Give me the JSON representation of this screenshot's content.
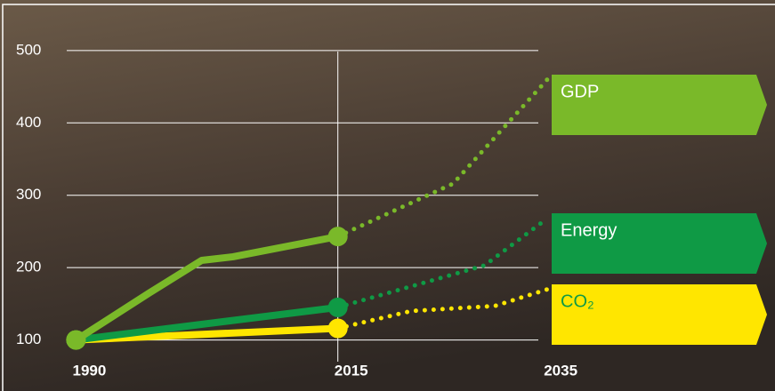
{
  "chart_data": {
    "type": "line",
    "xlim": [
      1983,
      2040
    ],
    "ylim": [
      70,
      560
    ],
    "xticks": [
      1990,
      2015,
      2035
    ],
    "yticks": [
      100,
      200,
      300,
      400,
      500
    ],
    "grid": true,
    "series": [
      {
        "name": "GDP",
        "color": "#7ab929",
        "x": [
          1990,
          1997,
          2002,
          2005,
          2015
        ],
        "values": [
          100,
          165,
          210,
          215,
          243
        ],
        "projection_x": [
          2015,
          2026,
          2035
        ],
        "projection_values": [
          243,
          316,
          460
        ]
      },
      {
        "name": "Energy",
        "color": "#0f9a45",
        "x": [
          1990,
          2015
        ],
        "values": [
          100,
          145
        ],
        "projection_x": [
          2015,
          2029,
          2035
        ],
        "projection_values": [
          145,
          203,
          268
        ]
      },
      {
        "name": "CO₂",
        "color": "#ffe600",
        "x": [
          1990,
          2015
        ],
        "values": [
          100,
          116
        ],
        "projection_x": [
          2015,
          2022,
          2030,
          2035
        ],
        "projection_values": [
          116,
          140,
          147,
          170
        ]
      }
    ]
  }
}
